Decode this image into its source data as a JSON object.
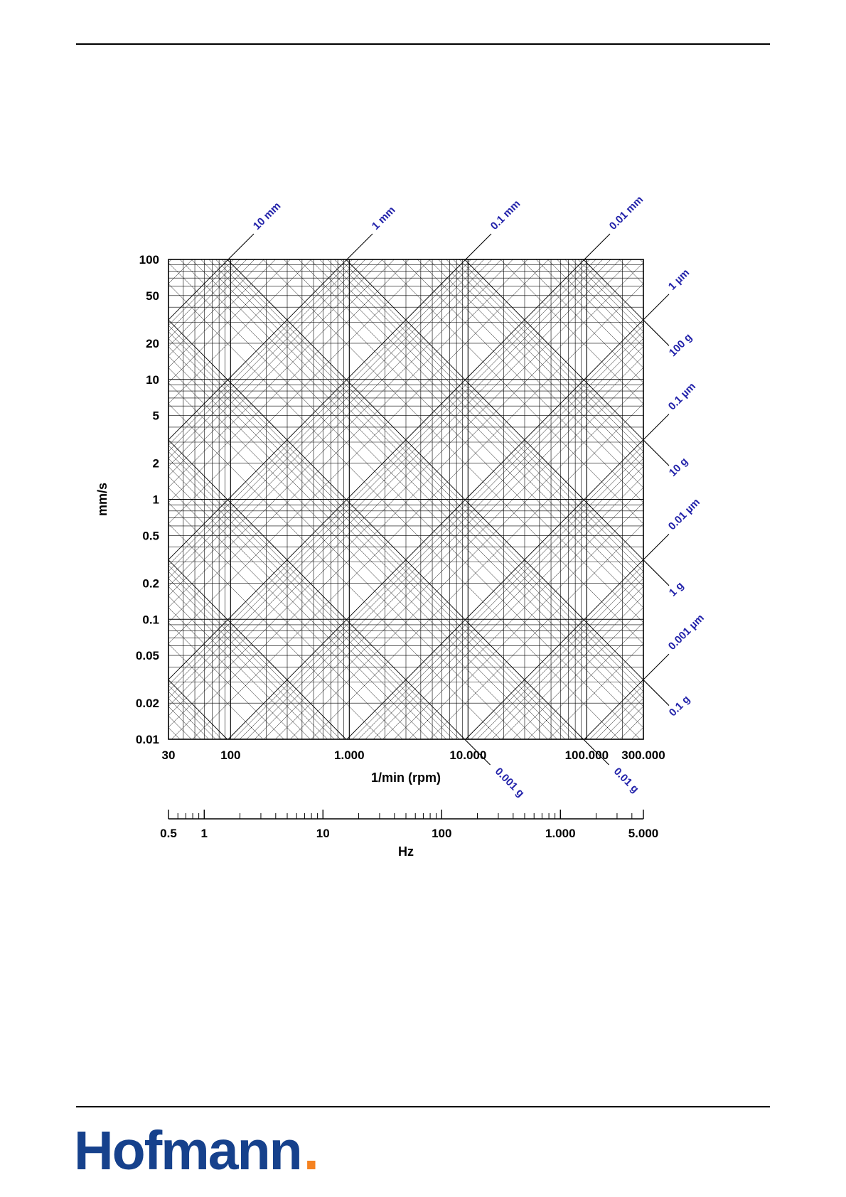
{
  "chart_data": {
    "type": "line",
    "subtype": "vibration-severity-nomogram",
    "grid": "log-log with +45/-45 diagonal line families",
    "grid_color": "#000000",
    "label_color": "#2222aa",
    "x_axis": {
      "label": "1/min (rpm)",
      "scale": "log",
      "min": 30,
      "max": 300000,
      "ticks": [
        {
          "v": 30,
          "label": "30"
        },
        {
          "v": 100,
          "label": "100"
        },
        {
          "v": 1000,
          "label": "1.000"
        },
        {
          "v": 10000,
          "label": "10.000"
        },
        {
          "v": 100000,
          "label": "100.000"
        },
        {
          "v": 300000,
          "label": "300.000"
        }
      ]
    },
    "y_axis": {
      "label": "mm/s",
      "scale": "log",
      "min": 0.01,
      "max": 100,
      "ticks": [
        {
          "v": 100,
          "label": "100"
        },
        {
          "v": 50,
          "label": "50"
        },
        {
          "v": 20,
          "label": "20"
        },
        {
          "v": 10,
          "label": "10"
        },
        {
          "v": 5,
          "label": "5"
        },
        {
          "v": 2,
          "label": "2"
        },
        {
          "v": 1,
          "label": "1"
        },
        {
          "v": 0.5,
          "label": "0.5"
        },
        {
          "v": 0.2,
          "label": "0.2"
        },
        {
          "v": 0.1,
          "label": "0.1"
        },
        {
          "v": 0.05,
          "label": "0.05"
        },
        {
          "v": 0.02,
          "label": "0.02"
        },
        {
          "v": 0.01,
          "label": "0.01"
        }
      ]
    },
    "hz_axis": {
      "label": "Hz",
      "scale": "log",
      "min": 0.5,
      "max": 5000,
      "ticks": [
        {
          "v": 0.5,
          "label": "0.5"
        },
        {
          "v": 1,
          "label": "1"
        },
        {
          "v": 10,
          "label": "10"
        },
        {
          "v": 100,
          "label": "100"
        },
        {
          "v": 1000,
          "label": "1.000"
        },
        {
          "v": 5000,
          "label": "5.000"
        }
      ]
    },
    "displacement_labels_top": [
      {
        "label": "10 mm",
        "mm": 10
      },
      {
        "label": "1 mm",
        "mm": 1
      },
      {
        "label": "0.1 mm",
        "mm": 0.1
      },
      {
        "label": "0.01 mm",
        "mm": 0.01
      }
    ],
    "displacement_labels_right": [
      {
        "label": "1 µm",
        "mm": 0.001
      },
      {
        "label": "0.1 µm",
        "mm": 0.0001
      },
      {
        "label": "0.01 µm",
        "mm": 1e-05
      },
      {
        "label": "0.001 µm",
        "mm": 1e-06
      }
    ],
    "acceleration_labels_right": [
      {
        "label": "100 g",
        "g": 100
      },
      {
        "label": "10 g",
        "g": 10
      },
      {
        "label": "1 g",
        "g": 1
      },
      {
        "label": "0.1 g",
        "g": 0.1
      }
    ],
    "acceleration_labels_bottom": [
      {
        "label": "0.001 g",
        "g": 0.001
      },
      {
        "label": "0.01 g",
        "g": 0.01
      }
    ]
  },
  "logo": {
    "text": "Hofmann",
    "dot": ".",
    "text_color": "#16418c",
    "dot_color": "#f58220"
  }
}
